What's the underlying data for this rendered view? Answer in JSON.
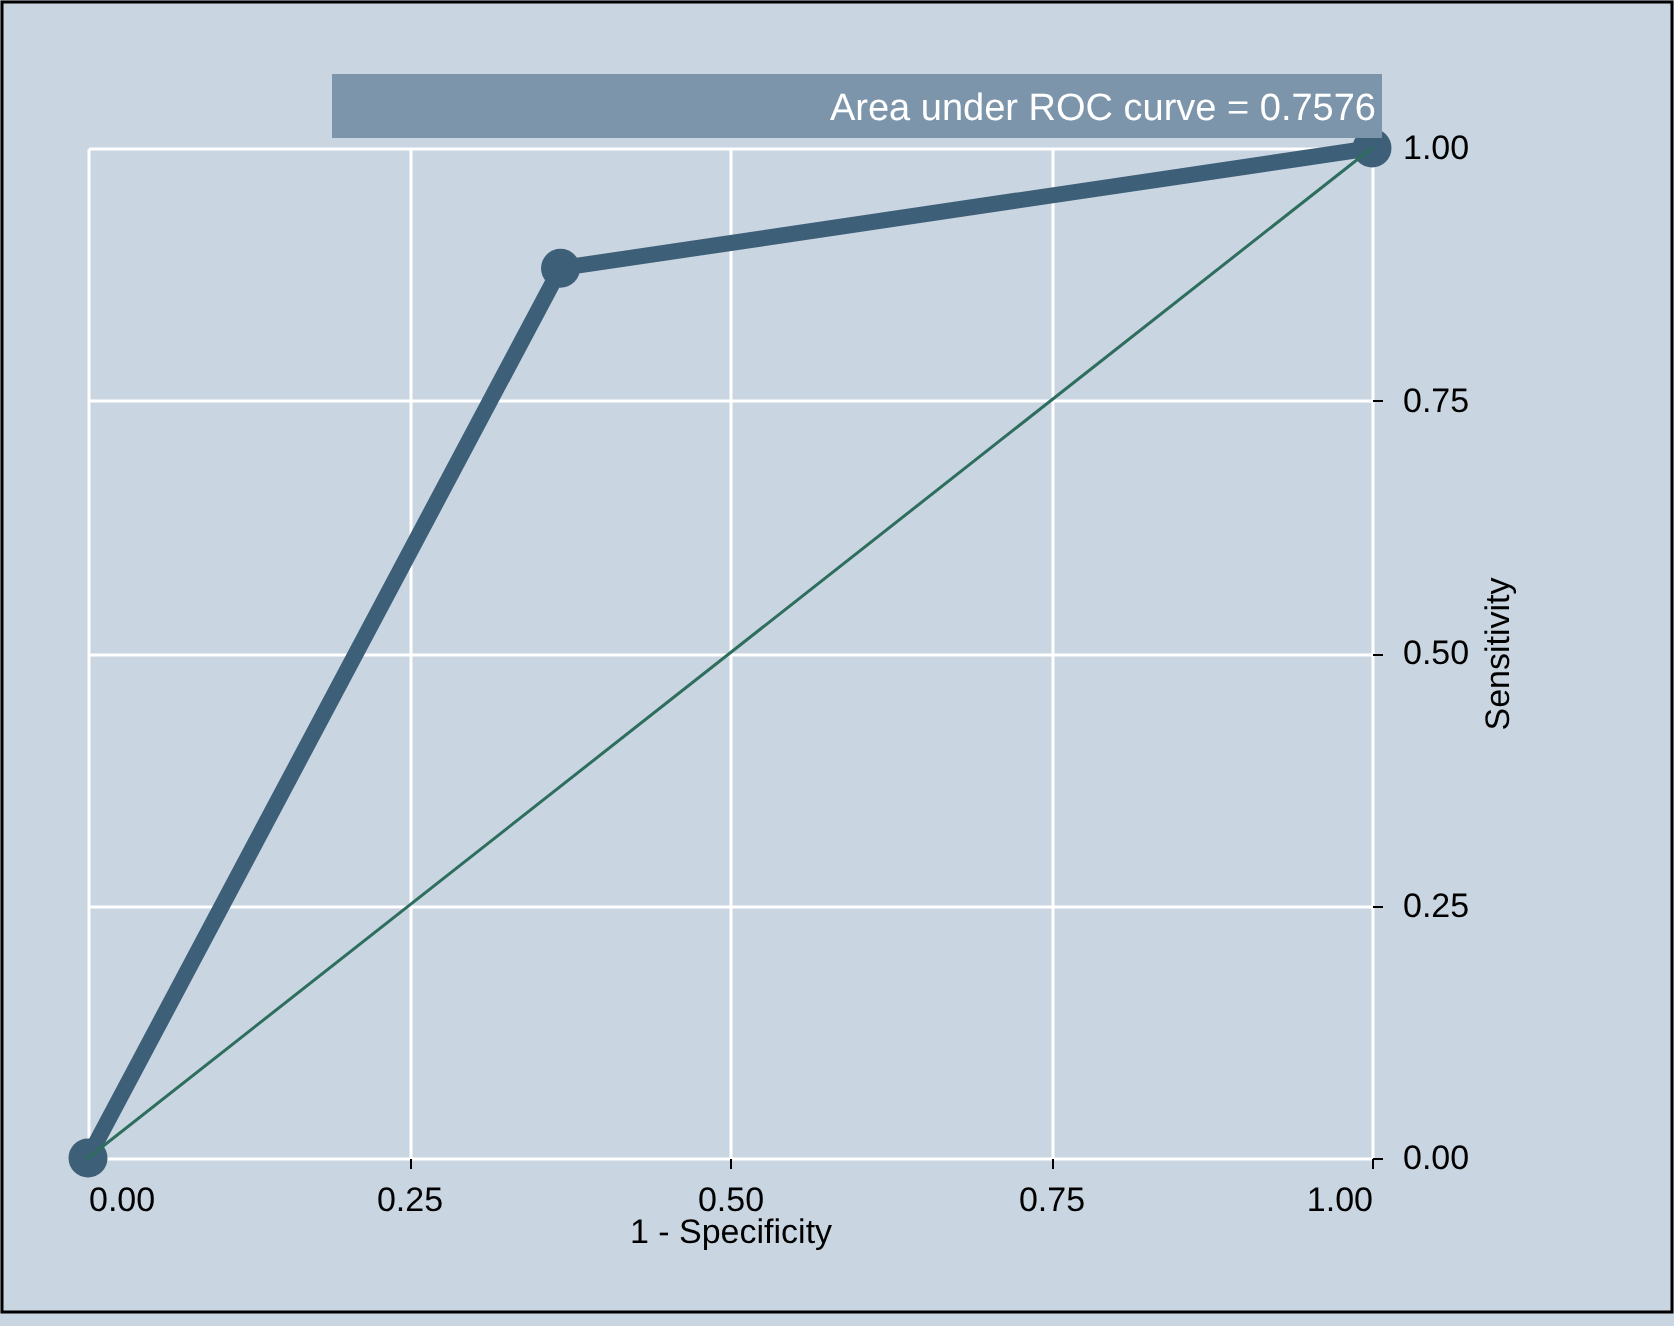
{
  "chart_data": {
    "type": "line",
    "xlabel": "1 - Specificity",
    "ylabel": "Sensitivity",
    "annotations": [
      "Area under ROC curve = 0.7576"
    ],
    "xlim": [
      0,
      1
    ],
    "ylim": [
      0,
      1
    ],
    "xticks": [
      {
        "value": 0,
        "label": "0.00"
      },
      {
        "value": 0.25,
        "label": "0.25"
      },
      {
        "value": 0.5,
        "label": "0.50"
      },
      {
        "value": 0.75,
        "label": "0.75"
      },
      {
        "value": 1,
        "label": "1.00"
      }
    ],
    "yticks": [
      {
        "value": 0,
        "label": "0.00"
      },
      {
        "value": 0.25,
        "label": "0.25"
      },
      {
        "value": 0.5,
        "label": "0.50"
      },
      {
        "value": 0.75,
        "label": "0.75"
      },
      {
        "value": 1,
        "label": "1.00"
      }
    ],
    "grid": true,
    "series": [
      {
        "color": "#3e5f78",
        "x": [
          0,
          0.368,
          1
        ],
        "values": [
          0,
          0.881,
          1
        ],
        "marker": "circle",
        "line_style": "solid"
      },
      {
        "color": "#2e6e5e",
        "x": [
          0,
          1
        ],
        "values": [
          0,
          1
        ],
        "marker": "none",
        "line_style": "solid"
      }
    ]
  }
}
